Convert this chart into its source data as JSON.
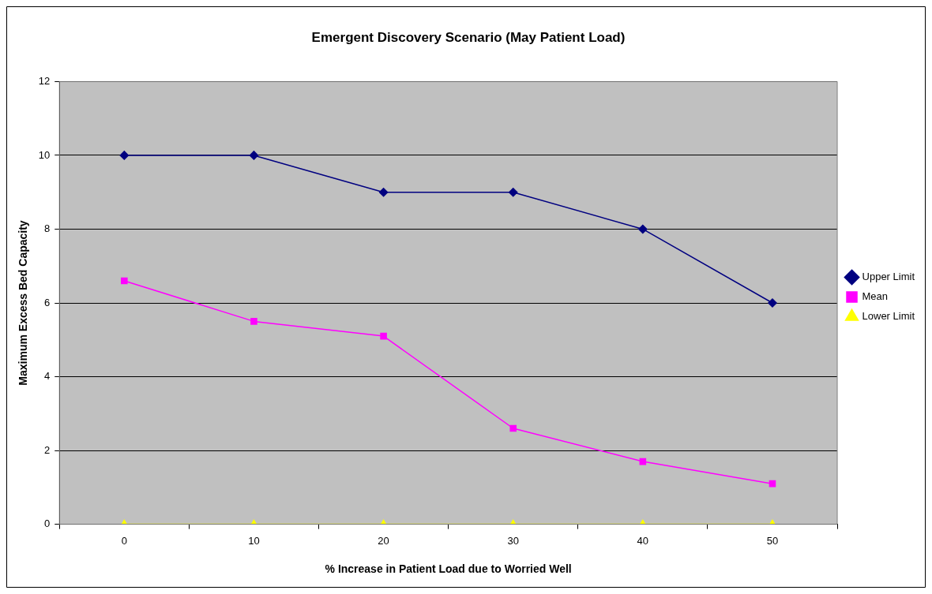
{
  "chart_data": {
    "type": "line",
    "title": "Emergent Discovery Scenario (May Patient Load)",
    "xlabel": "% Increase in Patient Load due to Worried Well",
    "ylabel": "Maximum Excess Bed Capacity",
    "categories": [
      "0",
      "10",
      "20",
      "30",
      "40",
      "50"
    ],
    "series": [
      {
        "name": "Upper Limit",
        "color": "#000080",
        "marker": "diamond",
        "values": [
          10,
          10,
          9,
          9,
          8,
          6
        ]
      },
      {
        "name": "Mean",
        "color": "#ff00ff",
        "marker": "square",
        "values": [
          6.6,
          5.5,
          5.1,
          2.6,
          1.7,
          1.1
        ]
      },
      {
        "name": "Lower Limit",
        "color": "#ffff00",
        "marker": "triangle",
        "values": [
          0,
          0,
          0,
          0,
          0,
          0
        ]
      }
    ],
    "ylim": [
      0,
      12
    ],
    "yticks": [
      0,
      2,
      4,
      6,
      8,
      10,
      12
    ],
    "grid": "y",
    "legend": "right",
    "line_style": "solid"
  }
}
